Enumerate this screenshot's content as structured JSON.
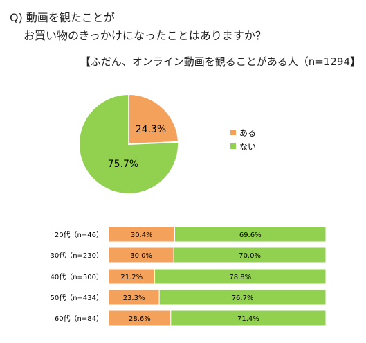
{
  "question": {
    "line1": "Q) 動画を観たことが",
    "line2": "お買い物のきっかけになったことはありますか？"
  },
  "subtitle": "【ふだん、オンライン動画を観ることがある人（n=1294】",
  "colors": {
    "aru": "#F4A15B",
    "nai": "#92D050",
    "divider": "#ffffff"
  },
  "chart_data": [
    {
      "type": "pie",
      "labels": [
        "ある",
        "ない"
      ],
      "values": [
        24.3,
        75.7
      ],
      "data_labels": [
        "24.3%",
        "75.7%"
      ],
      "legend": {
        "entries": [
          "ある",
          "ない"
        ],
        "placement": "right"
      }
    },
    {
      "type": "bar",
      "orientation": "horizontal",
      "stacked": true,
      "percent": true,
      "categories": [
        "20代（n=46）",
        "30代（n=230）",
        "40代（n=500）",
        "50代（n=434）",
        "60代（n=84）"
      ],
      "series": [
        {
          "name": "ある",
          "values": [
            30.4,
            30.0,
            21.2,
            23.3,
            28.6
          ],
          "labels": [
            "30.4%",
            "30.0%",
            "21.2%",
            "23.3%",
            "28.6%"
          ]
        },
        {
          "name": "ない",
          "values": [
            69.6,
            70.0,
            78.8,
            76.7,
            71.4
          ],
          "labels": [
            "69.6%",
            "70.0%",
            "78.8%",
            "76.7%",
            "71.4%"
          ]
        }
      ]
    }
  ]
}
